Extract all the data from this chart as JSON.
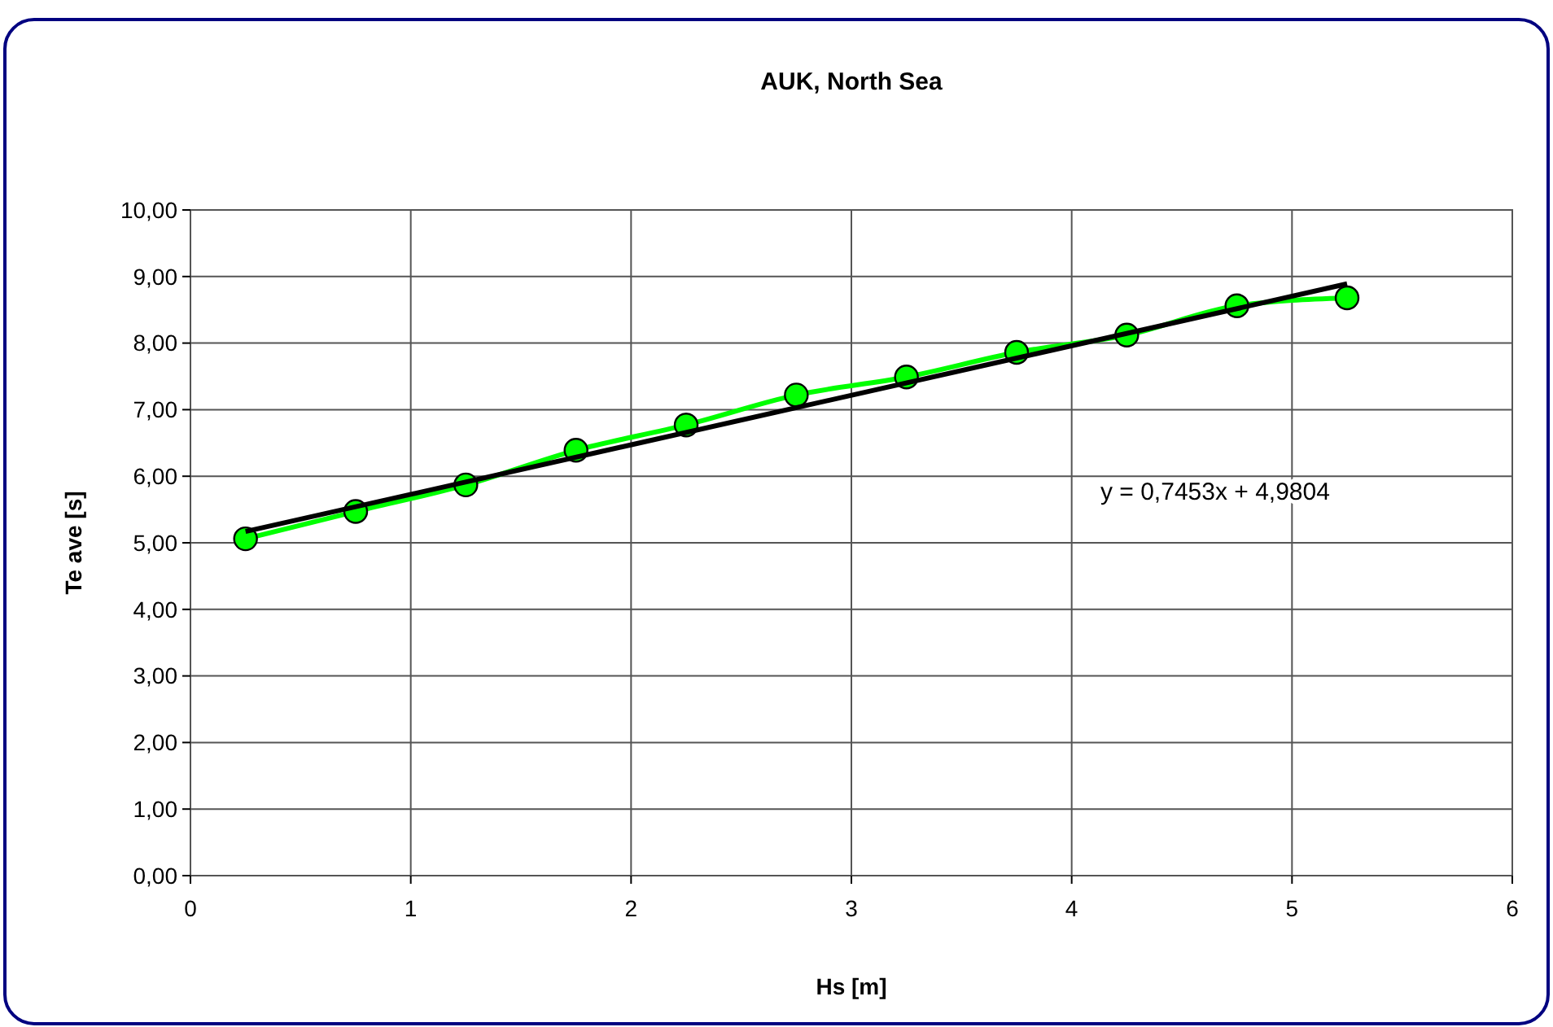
{
  "chart_data": {
    "type": "line",
    "title": "AUK, North Sea",
    "xlabel": "Hs [m]",
    "ylabel": "Te ave [s]",
    "x": [
      0.25,
      0.75,
      1.25,
      1.75,
      2.25,
      2.75,
      3.25,
      3.75,
      4.25,
      4.75,
      5.25
    ],
    "series": [
      {
        "color": "#00ff00",
        "marker": "circle",
        "values": [
          5.06,
          5.47,
          5.87,
          6.39,
          6.77,
          7.22,
          7.49,
          7.86,
          8.12,
          8.56,
          8.68
        ]
      },
      {
        "type": "line",
        "color": "#000000",
        "marker": "none",
        "x": [
          0.25,
          5.25
        ],
        "values": [
          5.17,
          8.89
        ]
      }
    ],
    "xlim": [
      0,
      6
    ],
    "xticks": [
      0,
      1,
      2,
      3,
      4,
      5,
      6
    ],
    "ylim": [
      0,
      10
    ],
    "yticks": [
      {
        "value": 0,
        "label": "0,00"
      },
      {
        "value": 1,
        "label": "1,00"
      },
      {
        "value": 2,
        "label": "2,00"
      },
      {
        "value": 3,
        "label": "3,00"
      },
      {
        "value": 4,
        "label": "4,00"
      },
      {
        "value": 5,
        "label": "5,00"
      },
      {
        "value": 6,
        "label": "6,00"
      },
      {
        "value": 7,
        "label": "7,00"
      },
      {
        "value": 8,
        "label": "8,00"
      },
      {
        "value": 9,
        "label": "9,00"
      },
      {
        "value": 10,
        "label": "10,00"
      }
    ],
    "grid": true,
    "annotations": [
      "y = 0,7453x + 4,9804"
    ]
  }
}
